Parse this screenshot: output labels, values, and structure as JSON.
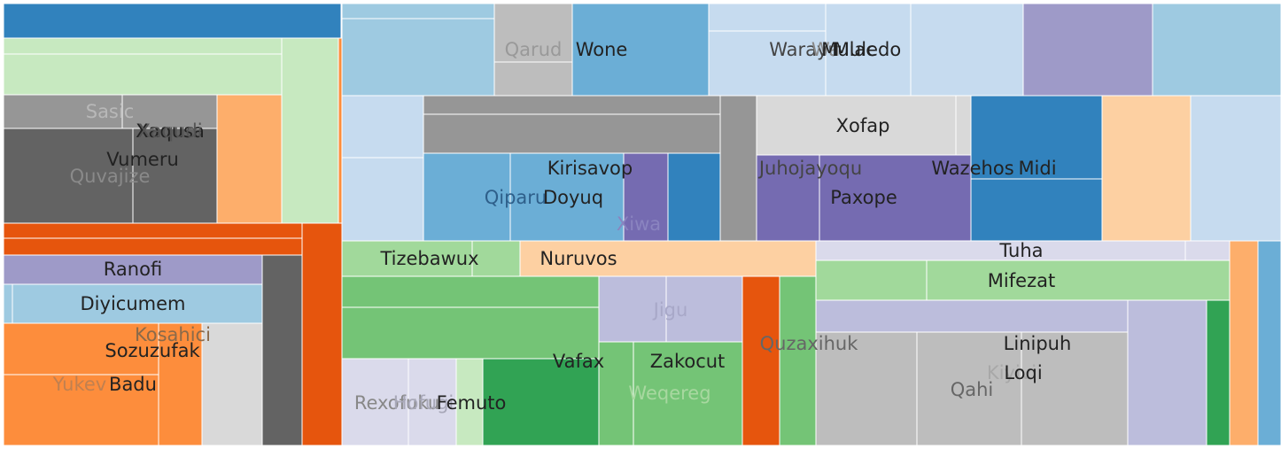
{
  "chart_data": {
    "type": "treemap",
    "title": "",
    "labels": [
      "Qarud",
      "Wone",
      "Warayu",
      "Wa",
      "Mulac",
      "Muledo",
      "Xofap",
      "Juhojayoqu",
      "Wazehos",
      "Midi",
      "Paxope",
      "Kirisavop",
      "Qiparu",
      "Doyuq",
      "Xiwa",
      "Sasic",
      "Xaqusa",
      "Xaqudi",
      "Vumeru",
      "Quvajize",
      "Ranofi",
      "Diyicumem",
      "Kosahici",
      "Sozuzufak",
      "Yukev",
      "Badu",
      "Tizebawux",
      "Nuruvos",
      "Jigu",
      "Quzaxihuk",
      "Vafax",
      "Zakocut",
      "Weqereg",
      "Rexofuku",
      "Hofugi",
      "Femuto",
      "Tuha",
      "Mifezat",
      "Linipuh",
      "Kiyivi",
      "Qahi",
      "Loqi"
    ],
    "colors": {
      "dark_blue": "#3182bd",
      "mid_blue": "#6baed6",
      "light_blue": "#9ecae1",
      "pale_blue": "#c6dbef",
      "dark_orange": "#e6550d",
      "mid_orange": "#fd8d3c",
      "light_orange": "#fdae6b",
      "pale_orange": "#fdd0a2",
      "dark_green": "#31a354",
      "mid_green": "#74c476",
      "light_green": "#a1d99b",
      "pale_green": "#c7e9c0",
      "dark_purple": "#756bb1",
      "mid_purple": "#9e9ac8",
      "light_purple": "#bcbddc",
      "pale_purple": "#dadaeb",
      "dark_gray": "#636363",
      "mid_gray": "#969696",
      "light_gray": "#bdbdbd",
      "pale_gray": "#d9d9d9"
    },
    "legend": "none",
    "grid": false
  }
}
